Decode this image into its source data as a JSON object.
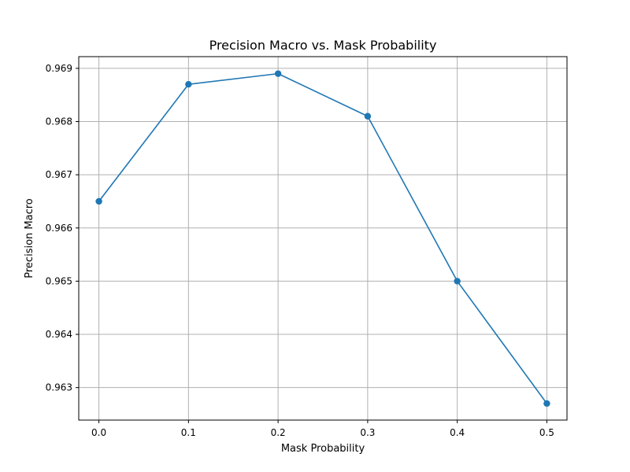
{
  "chart_data": {
    "type": "line",
    "title": "Precision Macro vs. Mask Probability",
    "xlabel": "Mask Probability",
    "ylabel": "Precision Macro",
    "x": [
      0.0,
      0.1,
      0.2,
      0.3,
      0.4,
      0.5
    ],
    "series": [
      {
        "values": [
          0.9665,
          0.9687,
          0.9689,
          0.9681,
          0.965,
          0.9627
        ],
        "color": "#1f77b4",
        "marker": "circle"
      }
    ],
    "xticks": [
      "0.0",
      "0.1",
      "0.2",
      "0.3",
      "0.4",
      "0.5"
    ],
    "yticks": [
      "0.963",
      "0.964",
      "0.965",
      "0.966",
      "0.967",
      "0.968",
      "0.969"
    ],
    "xlim": [
      -0.0225,
      0.5225
    ],
    "ylim": [
      0.962389,
      0.96922
    ],
    "grid": true,
    "colors": {
      "line": "#1f77b4",
      "grid": "#b0b0b0",
      "axes": "#000000"
    }
  }
}
